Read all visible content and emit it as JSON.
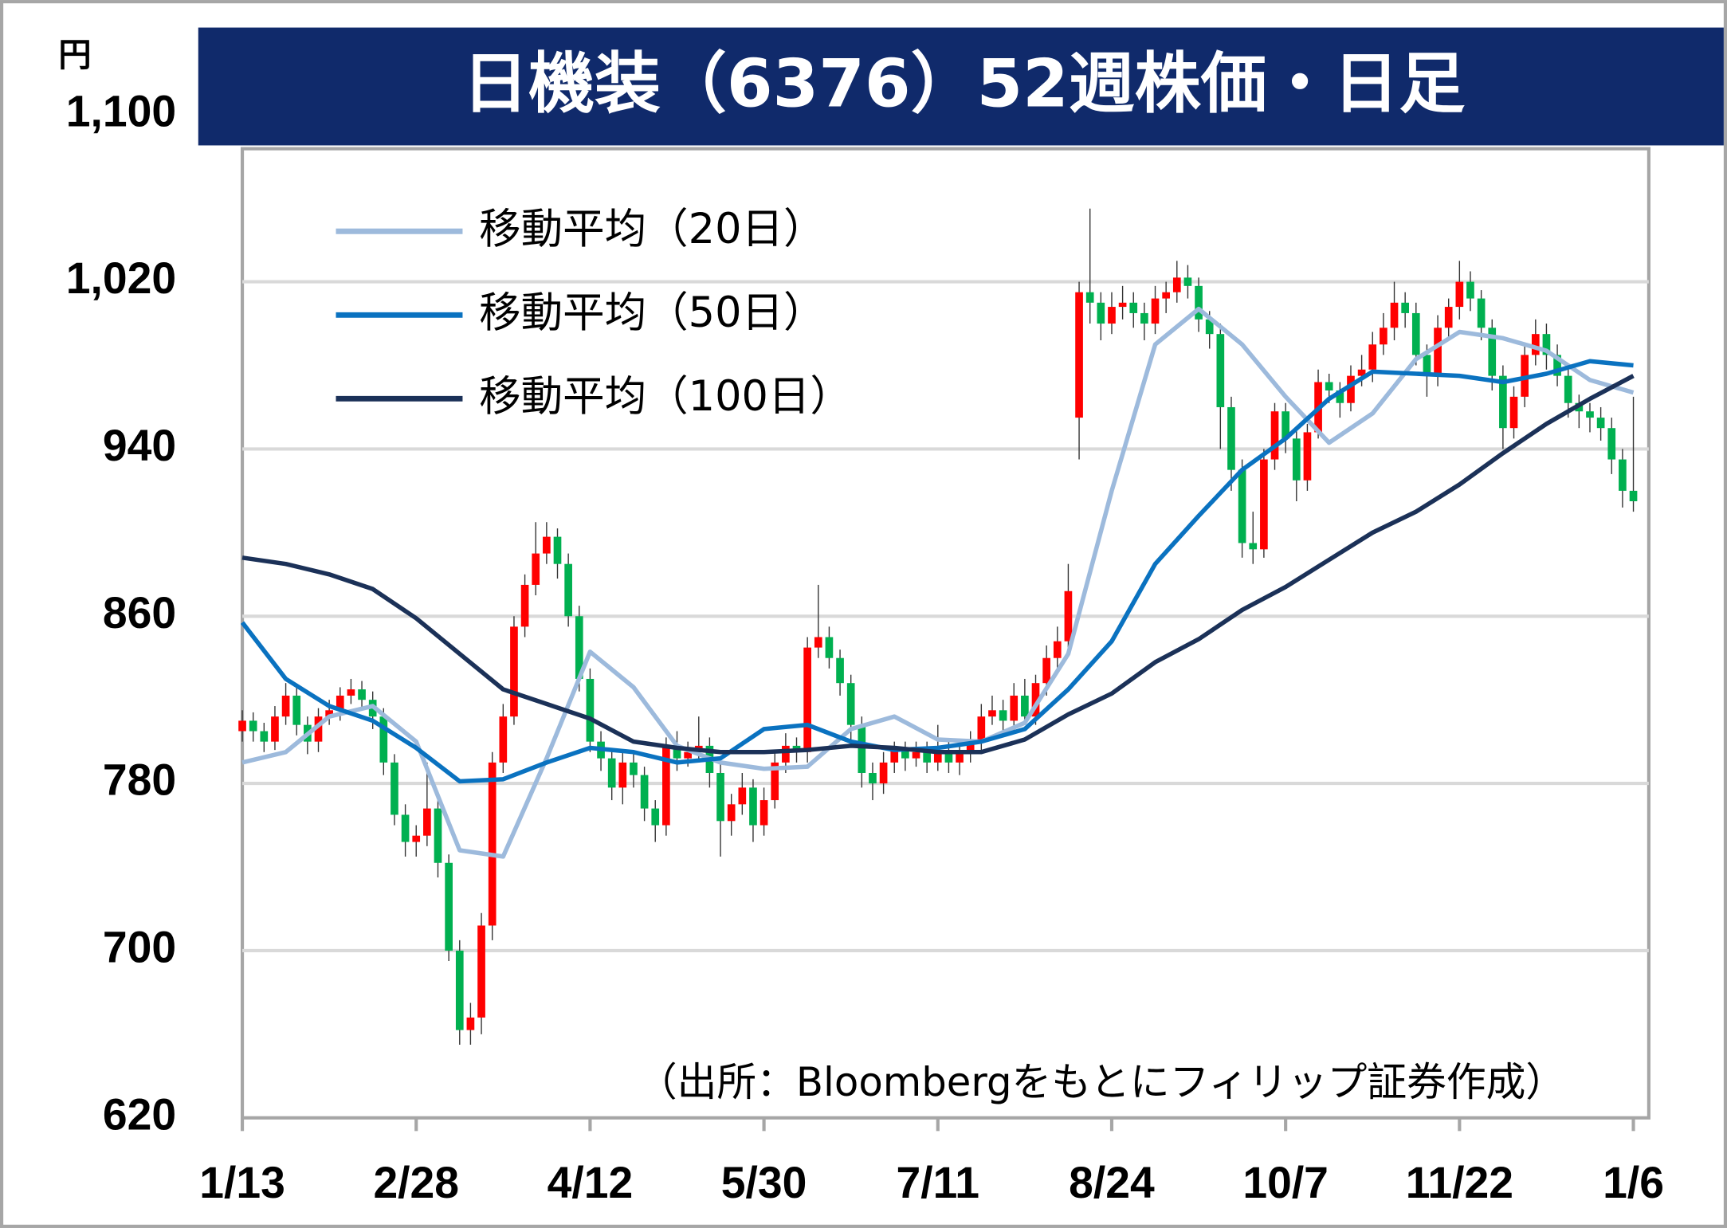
{
  "chart_data": {
    "type": "candlestick",
    "title": "日機装（6376）52週株価・日足",
    "y_unit": "円",
    "source": "（出所：Bloombergをもとにフィリップ証券作成）",
    "ylim": [
      620,
      1100
    ],
    "yticks": [
      620,
      700,
      780,
      860,
      940,
      {
        "value": 1020,
        "label": "1,020"
      },
      {
        "value": 1100,
        "label": "1,100"
      }
    ],
    "xlim": [
      0,
      128
    ],
    "xticks": [
      {
        "value": 0,
        "label": "1/13"
      },
      {
        "value": 16,
        "label": "2/28"
      },
      {
        "value": 32,
        "label": "4/12"
      },
      {
        "value": 48,
        "label": "5/30"
      },
      {
        "value": 64,
        "label": "7/11"
      },
      {
        "value": 80,
        "label": "8/24"
      },
      {
        "value": 96,
        "label": "10/7"
      },
      {
        "value": 112,
        "label": "11/22"
      },
      {
        "value": 128,
        "label": "1/6"
      }
    ],
    "grid": true,
    "up_color": "#ff0000",
    "down_color": "#00b050",
    "open": [
      805,
      810,
      805,
      800,
      812,
      822,
      808,
      800,
      812,
      815,
      822,
      825,
      820,
      812,
      790,
      765,
      752,
      755,
      768,
      742,
      700,
      662,
      668,
      712,
      790,
      812,
      855,
      875,
      890,
      898,
      885,
      860,
      830,
      800,
      792,
      778,
      790,
      784,
      768,
      760,
      798,
      792,
      795,
      798,
      785,
      762,
      770,
      778,
      760,
      772,
      790,
      798,
      795,
      845,
      850,
      840,
      828,
      808,
      785,
      780,
      790,
      796,
      792,
      795,
      790,
      796,
      790,
      795,
      800,
      812,
      815,
      810,
      822,
      812,
      828,
      840,
      848,
      955,
      1015,
      1010,
      1000,
      1008,
      1010,
      1005,
      1000,
      1012,
      1015,
      1022,
      1018,
      1002,
      995,
      960,
      930,
      895,
      892,
      935,
      958,
      945,
      925,
      948,
      972,
      968,
      962,
      975,
      978,
      990,
      998,
      1010,
      1005,
      985,
      975,
      998,
      1008,
      1020,
      1012,
      998,
      975,
      950,
      965,
      985,
      995,
      985,
      975,
      962,
      958,
      955,
      950,
      935,
      920
    ],
    "high": [
      815,
      814,
      809,
      817,
      828,
      826,
      812,
      816,
      820,
      826,
      830,
      829,
      824,
      816,
      794,
      770,
      760,
      790,
      772,
      746,
      705,
      675,
      718,
      795,
      818,
      860,
      880,
      905,
      905,
      902,
      890,
      865,
      835,
      805,
      796,
      795,
      795,
      788,
      772,
      802,
      805,
      800,
      812,
      802,
      790,
      775,
      785,
      782,
      778,
      795,
      804,
      802,
      850,
      875,
      855,
      844,
      832,
      812,
      790,
      795,
      800,
      800,
      800,
      800,
      808,
      800,
      800,
      805,
      818,
      822,
      820,
      828,
      830,
      832,
      846,
      855,
      885,
      1020,
      1055,
      1015,
      1015,
      1018,
      1015,
      1010,
      1018,
      1020,
      1030,
      1028,
      1022,
      1006,
      1000,
      965,
      935,
      910,
      940,
      962,
      962,
      950,
      952,
      978,
      976,
      972,
      980,
      985,
      996,
      1005,
      1020,
      1015,
      1010,
      990,
      1004,
      1012,
      1030,
      1025,
      1016,
      1002,
      980,
      970,
      990,
      1002,
      1000,
      990,
      980,
      966,
      962,
      960,
      955,
      940,
      965
    ],
    "low": [
      800,
      800,
      795,
      796,
      808,
      803,
      794,
      795,
      808,
      810,
      818,
      815,
      806,
      784,
      760,
      745,
      745,
      750,
      735,
      695,
      655,
      655,
      660,
      705,
      785,
      808,
      850,
      870,
      885,
      878,
      855,
      824,
      795,
      786,
      772,
      770,
      778,
      762,
      752,
      755,
      786,
      788,
      790,
      778,
      745,
      755,
      765,
      752,
      755,
      768,
      785,
      790,
      790,
      840,
      835,
      822,
      800,
      778,
      772,
      775,
      785,
      786,
      788,
      785,
      786,
      785,
      784,
      790,
      795,
      808,
      805,
      805,
      808,
      808,
      822,
      835,
      845,
      935,
      1000,
      992,
      995,
      1002,
      998,
      992,
      995,
      1005,
      1010,
      1012,
      996,
      988,
      940,
      920,
      888,
      885,
      888,
      930,
      938,
      915,
      920,
      945,
      962,
      955,
      958,
      970,
      972,
      985,
      992,
      998,
      980,
      965,
      970,
      992,
      1002,
      1006,
      992,
      968,
      940,
      945,
      960,
      980,
      978,
      970,
      955,
      950,
      948,
      944,
      928,
      912,
      910
    ],
    "close": [
      810,
      805,
      800,
      812,
      822,
      808,
      800,
      812,
      815,
      822,
      825,
      820,
      812,
      790,
      765,
      752,
      755,
      768,
      742,
      700,
      662,
      668,
      712,
      790,
      812,
      855,
      875,
      890,
      898,
      885,
      860,
      830,
      800,
      792,
      778,
      790,
      784,
      768,
      760,
      798,
      792,
      795,
      798,
      785,
      762,
      770,
      778,
      760,
      772,
      790,
      798,
      795,
      845,
      850,
      840,
      828,
      808,
      785,
      780,
      790,
      796,
      792,
      795,
      790,
      796,
      790,
      795,
      800,
      812,
      815,
      810,
      822,
      812,
      828,
      840,
      848,
      872,
      1015,
      1010,
      1000,
      1008,
      1010,
      1005,
      1000,
      1012,
      1015,
      1022,
      1018,
      1002,
      995,
      960,
      930,
      895,
      892,
      935,
      958,
      945,
      925,
      948,
      972,
      968,
      962,
      975,
      978,
      990,
      998,
      1010,
      1005,
      985,
      975,
      998,
      1008,
      1020,
      1012,
      998,
      975,
      950,
      965,
      985,
      995,
      985,
      975,
      962,
      958,
      955,
      950,
      935,
      920,
      915
    ],
    "series": [
      {
        "name": "移動平均（20日）",
        "color": "#9dbadc",
        "x": [
          0,
          4,
          8,
          12,
          16,
          20,
          24,
          28,
          32,
          36,
          40,
          44,
          48,
          52,
          56,
          60,
          64,
          68,
          72,
          76,
          80,
          84,
          88,
          92,
          96,
          100,
          104,
          108,
          112,
          116,
          120,
          124,
          128
        ],
        "values": [
          790,
          795,
          812,
          817,
          800,
          748,
          745,
          792,
          843,
          826,
          798,
          790,
          787,
          788,
          806,
          812,
          801,
          800,
          809,
          842,
          920,
          990,
          1007,
          990,
          965,
          943,
          957,
          983,
          996,
          993,
          987,
          973,
          967
        ]
      },
      {
        "name": "移動平均（50日）",
        "color": "#0a72c0",
        "x": [
          0,
          4,
          8,
          12,
          16,
          20,
          24,
          28,
          32,
          36,
          40,
          44,
          48,
          52,
          56,
          60,
          64,
          68,
          72,
          76,
          80,
          84,
          88,
          92,
          96,
          100,
          104,
          108,
          112,
          116,
          120,
          124,
          128
        ],
        "values": [
          857,
          830,
          817,
          810,
          797,
          781,
          782,
          790,
          797,
          795,
          790,
          792,
          806,
          808,
          800,
          796,
          797,
          800,
          806,
          825,
          848,
          885,
          908,
          930,
          945,
          964,
          977,
          976,
          975,
          972,
          976,
          982,
          980
        ]
      },
      {
        "name": "移動平均（100日）",
        "color": "#1b3158",
        "x": [
          0,
          4,
          8,
          12,
          16,
          20,
          24,
          28,
          32,
          36,
          40,
          44,
          48,
          52,
          56,
          60,
          64,
          68,
          72,
          76,
          80,
          84,
          88,
          92,
          96,
          100,
          104,
          108,
          112,
          116,
          120,
          124,
          128
        ],
        "values": [
          888,
          885,
          880,
          873,
          859,
          842,
          825,
          818,
          811,
          800,
          797,
          795,
          795,
          796,
          798,
          797,
          795,
          795,
          801,
          813,
          823,
          838,
          849,
          863,
          874,
          887,
          900,
          910,
          923,
          938,
          952,
          964,
          975
        ]
      }
    ]
  }
}
